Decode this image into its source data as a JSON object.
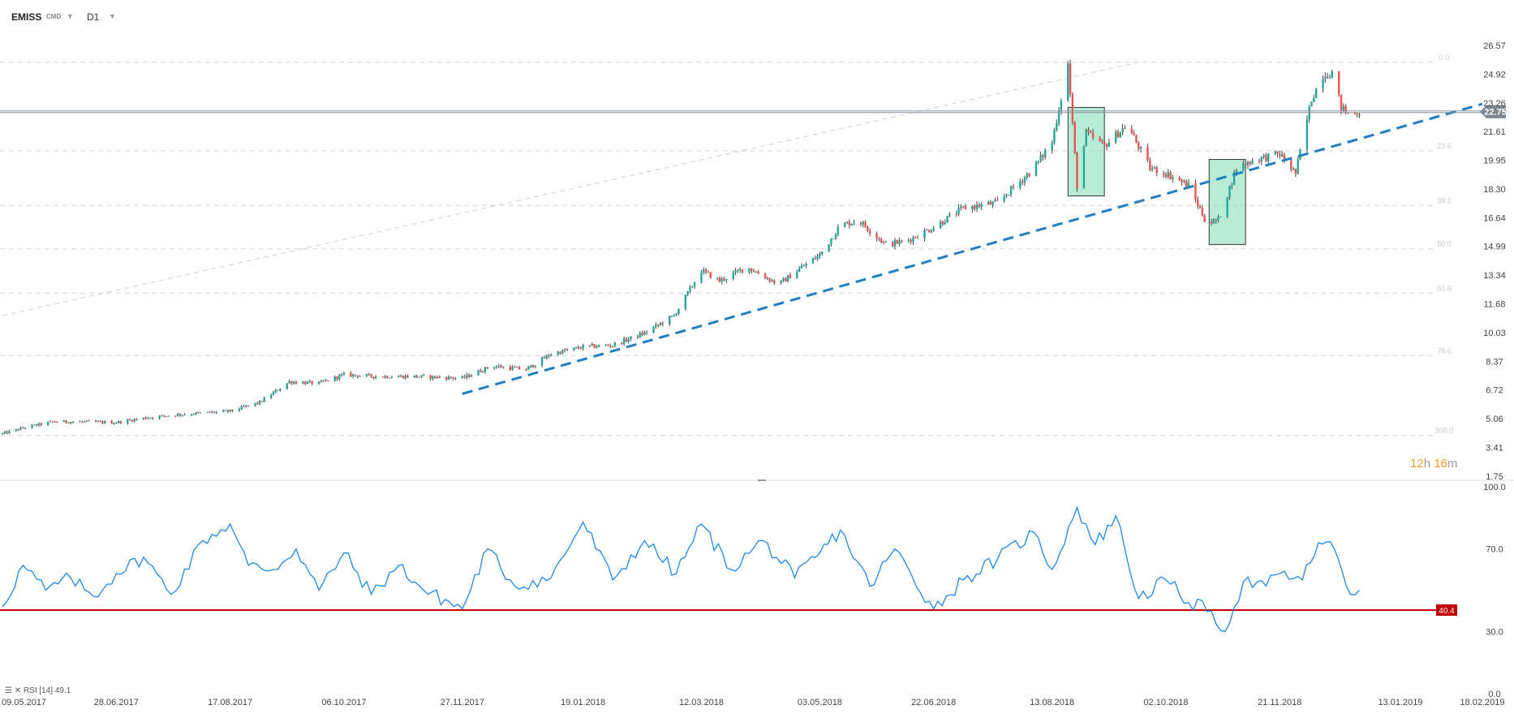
{
  "toolbar": {
    "symbol": "EMISS",
    "market": "CMD",
    "timeframe": "D1"
  },
  "colors": {
    "bull": "#26a69a",
    "bear": "#ef5350",
    "wick": "#444444",
    "trendline": "#1f7fc2",
    "rsi_line": "#1e88e5",
    "rsi_level": "#c00000",
    "price_tag": "#7d8790",
    "box_fill": "#7ddcb5"
  },
  "countdown": {
    "hours": "12",
    "h_unit": "h",
    "minutes": "16",
    "m_unit": "m"
  },
  "rsi_legend": {
    "name": "RSI [14]",
    "value": "49.1"
  },
  "chart_data": [
    {
      "type": "candlestick",
      "title": "",
      "ylim": [
        1.75,
        26.57
      ],
      "y_ticks": [
        "26.57",
        "24.92",
        "23.26",
        "21.61",
        "19.95",
        "18.30",
        "16.64",
        "14.99",
        "13.34",
        "11.68",
        "10.03",
        "8.37",
        "6.72",
        "5.06",
        "3.41",
        "1.75"
      ],
      "x_ticks": [
        "09.05.2017",
        "28.06.2017",
        "17.08.2017",
        "06.10.2017",
        "27.11.2017",
        "19.01.2018",
        "12.03.2018",
        "03.05.2018",
        "22.06.2018",
        "13.08.2018",
        "02.10.2018",
        "21.11.2018",
        "13.01.2019",
        "18.02.2019"
      ],
      "x_range": [
        "2017-05-09",
        "2019-02-18"
      ],
      "last_price": "22.75",
      "fibonacci": {
        "levels": [
          "0.0",
          "23.6",
          "38.2",
          "50.0",
          "61.8",
          "78.6",
          "100.0"
        ],
        "prices": [
          25.6,
          20.5,
          17.35,
          14.85,
          12.3,
          8.7,
          4.1
        ]
      },
      "trendlines": [
        {
          "style": "dashed",
          "from": [
            "2017-11-27",
            6.5
          ],
          "to": [
            "2019-02-18",
            23.2
          ]
        }
      ],
      "fib_anchor_line": {
        "from": [
          "2017-05-09",
          11.0
        ],
        "to": [
          "2018-09-20",
          25.6
        ]
      },
      "boxes": [
        {
          "from": "2018-08-20",
          "to": "2018-09-05",
          "low": 17.9,
          "high": 23.0
        },
        {
          "from": "2018-10-21",
          "to": "2018-11-06",
          "low": 15.1,
          "high": 20.0
        }
      ],
      "price_path": {
        "dates": [
          "2017-05-09",
          "2017-05-20",
          "2017-06-01",
          "2017-06-28",
          "2017-07-10",
          "2017-07-25",
          "2017-08-17",
          "2017-08-30",
          "2017-09-12",
          "2017-09-25",
          "2017-10-06",
          "2017-10-20",
          "2017-11-05",
          "2017-11-27",
          "2017-12-10",
          "2017-12-25",
          "2018-01-05",
          "2018-01-19",
          "2018-02-01",
          "2018-02-15",
          "2018-02-28",
          "2018-03-12",
          "2018-03-20",
          "2018-04-01",
          "2018-04-15",
          "2018-04-25",
          "2018-05-03",
          "2018-05-12",
          "2018-05-20",
          "2018-06-01",
          "2018-06-10",
          "2018-06-22",
          "2018-07-05",
          "2018-07-20",
          "2018-08-05",
          "2018-08-13",
          "2018-08-20",
          "2018-08-24",
          "2018-08-28",
          "2018-09-05",
          "2018-09-15",
          "2018-09-25",
          "2018-10-02",
          "2018-10-12",
          "2018-10-20",
          "2018-10-25",
          "2018-11-02",
          "2018-11-10",
          "2018-11-21",
          "2018-11-28",
          "2018-12-05",
          "2018-12-10",
          "2018-12-14",
          "2018-12-18",
          "2018-12-22",
          "2018-12-26"
        ],
        "close": [
          4.2,
          4.6,
          4.9,
          4.85,
          5.1,
          5.3,
          5.5,
          6.0,
          7.2,
          7.1,
          7.6,
          7.5,
          7.5,
          7.4,
          8.1,
          7.9,
          8.8,
          9.2,
          9.3,
          10.0,
          11.0,
          13.6,
          13.0,
          13.8,
          12.8,
          13.8,
          14.5,
          16.2,
          16.5,
          15.1,
          15.3,
          16.1,
          17.2,
          17.5,
          19.5,
          21.0,
          25.5,
          18.5,
          21.5,
          20.8,
          22.0,
          19.5,
          19.2,
          18.5,
          16.3,
          16.5,
          19.5,
          20.0,
          20.3,
          19.2,
          23.5,
          24.9,
          25.0,
          23.0,
          22.5,
          22.75
        ]
      }
    },
    {
      "type": "line",
      "title": "RSI [14]",
      "ylim": [
        0,
        100
      ],
      "y_ticks": [
        "100.0",
        "70.0",
        "30.0",
        "0.0"
      ],
      "level": 40.4,
      "level_label": "40.4",
      "series": [
        {
          "dates": [
            "2017-05-09",
            "2017-05-18",
            "2017-05-28",
            "2017-06-08",
            "2017-06-18",
            "2017-06-28",
            "2017-07-10",
            "2017-07-22",
            "2017-08-05",
            "2017-08-17",
            "2017-08-25",
            "2017-09-05",
            "2017-09-15",
            "2017-09-25",
            "2017-10-06",
            "2017-10-18",
            "2017-10-30",
            "2017-11-10",
            "2017-11-27",
            "2017-12-08",
            "2017-12-20",
            "2018-01-05",
            "2018-01-19",
            "2018-02-01",
            "2018-02-15",
            "2018-03-01",
            "2018-03-12",
            "2018-03-25",
            "2018-04-08",
            "2018-04-22",
            "2018-05-03",
            "2018-05-12",
            "2018-05-25",
            "2018-06-05",
            "2018-06-22",
            "2018-07-05",
            "2018-07-20",
            "2018-08-05",
            "2018-08-13",
            "2018-08-24",
            "2018-09-01",
            "2018-09-10",
            "2018-09-20",
            "2018-10-02",
            "2018-10-12",
            "2018-10-22",
            "2018-10-28",
            "2018-11-05",
            "2018-11-15",
            "2018-11-21",
            "2018-12-01",
            "2018-12-08",
            "2018-12-15",
            "2018-12-22",
            "2018-12-26"
          ],
          "values": [
            42,
            62,
            50,
            56,
            47,
            58,
            66,
            48,
            74,
            82,
            62,
            60,
            70,
            50,
            68,
            48,
            62,
            50,
            41,
            70,
            52,
            56,
            83,
            55,
            74,
            58,
            82,
            60,
            74,
            56,
            68,
            79,
            52,
            70,
            41,
            55,
            65,
            78,
            60,
            90,
            72,
            86,
            46,
            55,
            44,
            40,
            30,
            54,
            52,
            58,
            55,
            73,
            70,
            48,
            50
          ]
        }
      ]
    }
  ]
}
